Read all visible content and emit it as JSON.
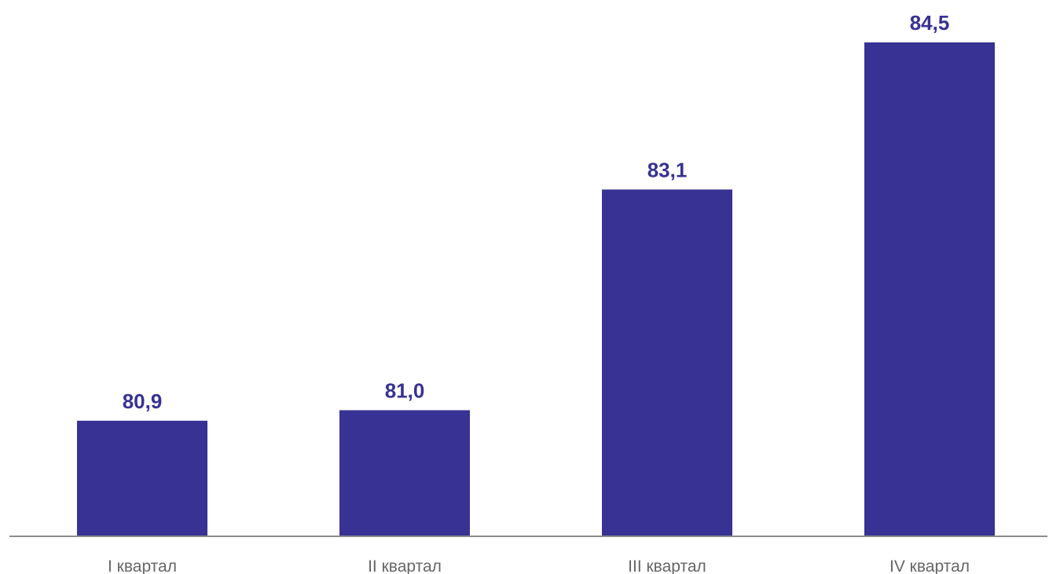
{
  "chart_data": {
    "type": "bar",
    "categories": [
      "I квартал",
      "II квартал",
      "III квартал",
      "IV квартал"
    ],
    "values": [
      80.9,
      81.0,
      83.1,
      84.5
    ],
    "value_labels": [
      "80,9",
      "81,0",
      "83,1",
      "84,5"
    ],
    "ylim": [
      79.8,
      84.5
    ],
    "grid": false,
    "legend": "none"
  },
  "colors": {
    "bar": "#373293",
    "value_label": "#373293",
    "axis": "#8c8c8c",
    "tick_label": "#666666"
  }
}
